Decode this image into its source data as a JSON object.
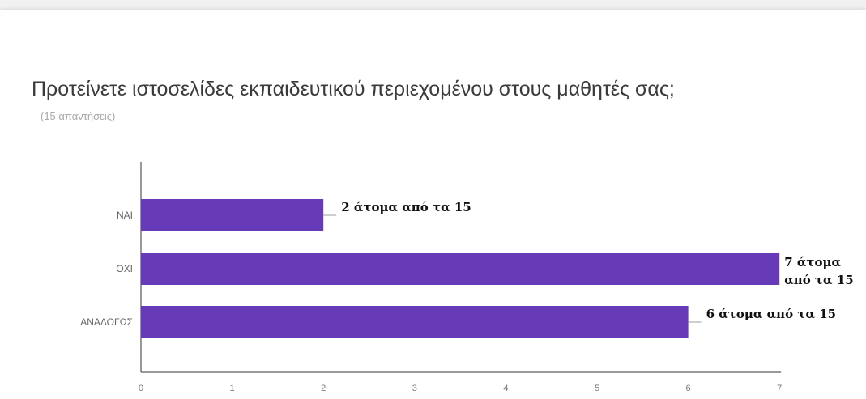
{
  "colors": {
    "bar": "#673ab7",
    "axis": "#333333",
    "leader": "#9e9e9e"
  },
  "chart_data": {
    "type": "bar",
    "orientation": "horizontal",
    "title": "Προτείνετε ιστοσελίδες εκπαιδευτικού περιεχομένου στους μαθητές σας;",
    "subtitle": "(15 απαντήσεις)",
    "categories": [
      "ΝΑΙ",
      "ΟΧΙ",
      "ΑΝΑΛΟΓΩΣ"
    ],
    "values": [
      2,
      7,
      6
    ],
    "data_labels": [
      [
        "2 άτομα από τα 15"
      ],
      [
        "7 άτομα",
        "από τα 15"
      ],
      [
        "6 άτομα από τα 15"
      ]
    ],
    "xlim": [
      0,
      7
    ],
    "xticks": [
      "0",
      "1",
      "2",
      "3",
      "4",
      "5",
      "6",
      "7"
    ],
    "grid": false,
    "legend": "none"
  }
}
